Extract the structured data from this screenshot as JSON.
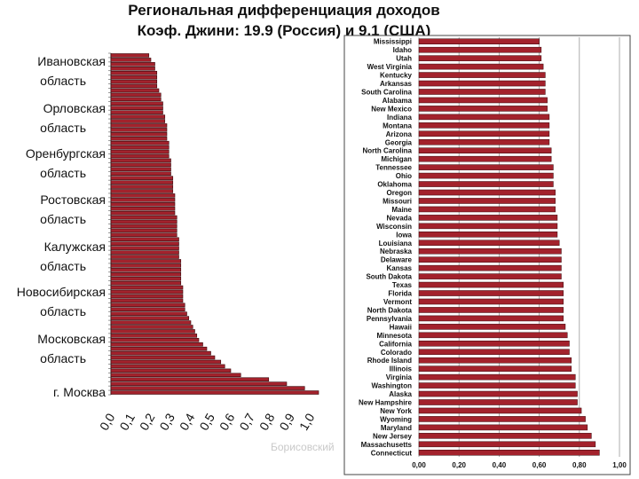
{
  "slide": {
    "title_line1": "Региональная дифференциация доходов",
    "title_line2": "Коэф. Джини: 19.9 (Россия) и  9.1 (США)",
    "footer_fragment": "Борисовский"
  },
  "chart_data": [
    {
      "type": "bar",
      "orientation": "horizontal",
      "title": "",
      "xlim": [
        0,
        1.0
      ],
      "x_ticks": [
        "0,0",
        "0,1",
        "0,2",
        "0,3",
        "0,4",
        "0,5",
        "0,6",
        "0,7",
        "0,8",
        "0,9",
        "1,0"
      ],
      "labeled_categories": [
        "Ивановская область",
        "Орловская область",
        "Оренбургская область",
        "Ростовская область",
        "Калужская область",
        "Новосибирская область",
        "Московская область",
        "г. Москва"
      ],
      "bar_color": "#a3222c",
      "values": [
        0.19,
        0.2,
        0.22,
        0.22,
        0.23,
        0.23,
        0.23,
        0.23,
        0.24,
        0.25,
        0.25,
        0.26,
        0.26,
        0.26,
        0.27,
        0.27,
        0.28,
        0.28,
        0.28,
        0.28,
        0.29,
        0.29,
        0.29,
        0.29,
        0.3,
        0.3,
        0.3,
        0.3,
        0.31,
        0.31,
        0.31,
        0.31,
        0.32,
        0.32,
        0.32,
        0.32,
        0.32,
        0.33,
        0.33,
        0.33,
        0.33,
        0.33,
        0.34,
        0.34,
        0.34,
        0.34,
        0.34,
        0.35,
        0.35,
        0.35,
        0.35,
        0.35,
        0.35,
        0.36,
        0.36,
        0.36,
        0.36,
        0.37,
        0.37,
        0.38,
        0.39,
        0.4,
        0.41,
        0.42,
        0.43,
        0.44,
        0.46,
        0.48,
        0.5,
        0.52,
        0.55,
        0.57,
        0.6,
        0.65,
        0.79,
        0.88,
        0.97,
        1.04
      ]
    },
    {
      "type": "bar",
      "orientation": "horizontal",
      "title": "",
      "xlim": [
        0,
        1.0
      ],
      "x_ticks": [
        "0,00",
        "0,20",
        "0,40",
        "0,60",
        "0,80",
        "1,00"
      ],
      "bar_color": "#a3222c",
      "categories": [
        "Mississippi",
        "Idaho",
        "Utah",
        "West Virginia",
        "Kentucky",
        "Arkansas",
        "South Carolina",
        "Alabama",
        "New Mexico",
        "Indiana",
        "Montana",
        "Arizona",
        "Georgia",
        "North Carolina",
        "Michigan",
        "Tennessee",
        "Ohio",
        "Oklahoma",
        "Oregon",
        "Missouri",
        "Maine",
        "Nevada",
        "Wisconsin",
        "Iowa",
        "Louisiana",
        "Nebraska",
        "Delaware",
        "Kansas",
        "South Dakota",
        "Texas",
        "Florida",
        "Vermont",
        "North Dakota",
        "Pennsylvania",
        "Hawaii",
        "Minnesota",
        "California",
        "Colorado",
        "Rhode Island",
        "Illinois",
        "Virginia",
        "Washington",
        "Alaska",
        "New Hampshire",
        "New York",
        "Wyoming",
        "Maryland",
        "New Jersey",
        "Massachusetts",
        "Connecticut"
      ],
      "values": [
        0.6,
        0.61,
        0.61,
        0.62,
        0.63,
        0.63,
        0.63,
        0.64,
        0.64,
        0.65,
        0.65,
        0.65,
        0.65,
        0.66,
        0.66,
        0.67,
        0.67,
        0.67,
        0.68,
        0.68,
        0.68,
        0.69,
        0.69,
        0.69,
        0.7,
        0.71,
        0.71,
        0.71,
        0.71,
        0.72,
        0.72,
        0.72,
        0.72,
        0.72,
        0.73,
        0.74,
        0.75,
        0.75,
        0.76,
        0.76,
        0.78,
        0.78,
        0.79,
        0.79,
        0.81,
        0.83,
        0.84,
        0.86,
        0.88,
        0.9
      ]
    }
  ]
}
